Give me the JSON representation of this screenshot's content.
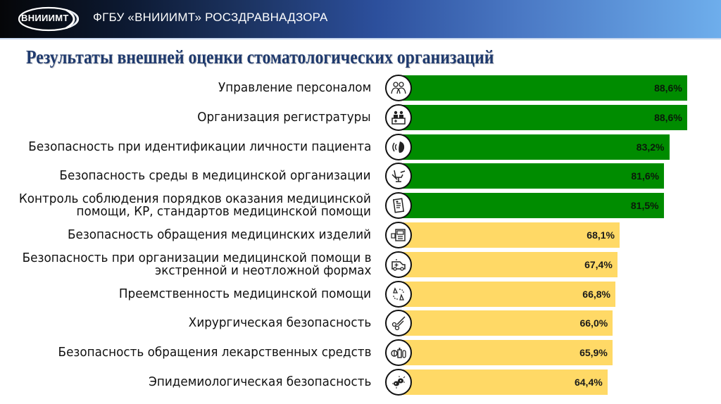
{
  "header": {
    "logo_text": "ВНИИИМТ",
    "org_name": "ФГБУ «ВНИИИМТ» РОСЗДРАВНАДЗОРА"
  },
  "title": "Результаты внешней оценки стоматологических организаций",
  "colors": {
    "high": "#008c00",
    "medium": "#ffd966",
    "title": "#1f3a6e"
  },
  "rows": [
    {
      "label": "Управление персоналом",
      "value": "88,6%",
      "icon": "staff-icon",
      "color": "green"
    },
    {
      "label": "Организация регистратуры",
      "value": "88,6%",
      "icon": "reception-icon",
      "color": "green"
    },
    {
      "label": "Безопасность при идентификации личности пациента",
      "value": "83,2%",
      "icon": "identification-icon",
      "color": "green"
    },
    {
      "label": "Безопасность среды в медицинской организации",
      "value": "81,6%",
      "icon": "dental-chair-icon",
      "color": "green"
    },
    {
      "label": "Контроль соблюдения порядков оказания медицинской\nпомощи, КР, стандартов медицинской помощи",
      "value": "81,5%",
      "icon": "document-icon",
      "color": "green"
    },
    {
      "label": "Безопасность обращения медицинских изделий",
      "value": "68,1%",
      "icon": "medical-device-icon",
      "color": "yellow"
    },
    {
      "label": "Безопасность при организации медицинской помощи в\nэкстренной и неотложной формах",
      "value": "67,4%",
      "icon": "ambulance-icon",
      "color": "yellow"
    },
    {
      "label": "Преемственность медицинской помощи",
      "value": "66,8%",
      "icon": "continuity-icon",
      "color": "yellow"
    },
    {
      "label": "Хирургическая безопасность",
      "value": "66,0%",
      "icon": "surgical-scissors-icon",
      "color": "yellow"
    },
    {
      "label": "Безопасность обращения лекарственных средств",
      "value": "65,9%",
      "icon": "medicines-icon",
      "color": "yellow"
    },
    {
      "label": "Эпидемиологическая безопасность",
      "value": "64,4%",
      "icon": "bacteria-icon",
      "color": "yellow"
    }
  ],
  "chart_data": {
    "type": "bar",
    "orientation": "horizontal",
    "title": "Результаты внешней оценки стоматологических организаций",
    "xlabel": "",
    "ylabel": "",
    "categories": [
      "Управление персоналом",
      "Организация регистратуры",
      "Безопасность при идентификации личности пациента",
      "Безопасность среды в медицинской организации",
      "Контроль соблюдения порядков оказания медицинской помощи, КР, стандартов медицинской помощи",
      "Безопасность обращения медицинских изделий",
      "Безопасность при организации медицинской помощи в экстренной и неотложной формах",
      "Преемственность медицинской помощи",
      "Хирургическая безопасность",
      "Безопасность обращения лекарственных средств",
      "Эпидемиологическая безопасность"
    ],
    "values": [
      88.6,
      88.6,
      83.2,
      81.6,
      81.5,
      68.1,
      67.4,
      66.8,
      66.0,
      65.9,
      64.4
    ],
    "unit": "%",
    "bar_colors": [
      "#008c00",
      "#008c00",
      "#008c00",
      "#008c00",
      "#008c00",
      "#ffd966",
      "#ffd966",
      "#ffd966",
      "#ffd966",
      "#ffd966",
      "#ffd966"
    ],
    "data_labels": true,
    "grid": false,
    "legend": null,
    "xlim": [
      0,
      100
    ]
  }
}
